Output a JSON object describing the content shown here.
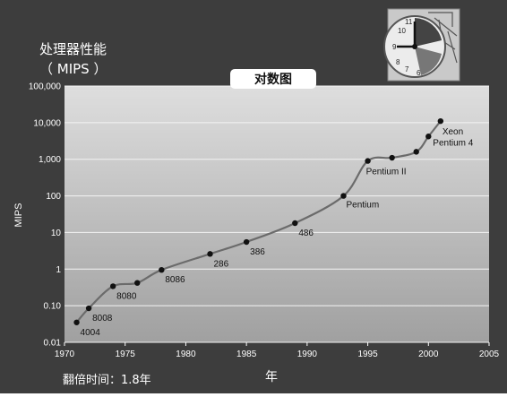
{
  "header": {
    "title_line1": "处理器性能",
    "title_line2": "（ MIPS ）"
  },
  "scale_badge": "对数图",
  "footer": {
    "doubling_time": "翻倍时间：1.8年"
  },
  "colors": {
    "background": "#3d3d3d",
    "plot_top": "#d6d6d6",
    "plot_bottom": "#9c9c9c",
    "line": "#6e6e6e",
    "point": "#111111"
  },
  "icon": "analog-clock-over-circuit-icon",
  "chart_data": {
    "type": "line",
    "ylabel": "MIPS",
    "xlabel": "年",
    "xlim": [
      1970,
      2005
    ],
    "ylim": [
      0.01,
      100000
    ],
    "y_scale": "log",
    "grid": true,
    "x_ticks": [
      1970,
      1975,
      1980,
      1985,
      1990,
      1995,
      2000,
      2005
    ],
    "y_ticks": [
      {
        "value": 0.01,
        "label": "0.01"
      },
      {
        "value": 0.1,
        "label": "0.10"
      },
      {
        "value": 1,
        "label": "1"
      },
      {
        "value": 10,
        "label": "10"
      },
      {
        "value": 100,
        "label": "100"
      },
      {
        "value": 1000,
        "label": "1,000"
      },
      {
        "value": 10000,
        "label": "10,000"
      },
      {
        "value": 100000,
        "label": "100,000"
      }
    ],
    "points": [
      {
        "x": 1971,
        "y": 0.035,
        "label": "4004"
      },
      {
        "x": 1972,
        "y": 0.085,
        "label": "8008"
      },
      {
        "x": 1974,
        "y": 0.34,
        "label": "8080"
      },
      {
        "x": 1976,
        "y": 0.42,
        "label": ""
      },
      {
        "x": 1978,
        "y": 0.95,
        "label": "8086"
      },
      {
        "x": 1982,
        "y": 2.6,
        "label": "286"
      },
      {
        "x": 1985,
        "y": 5.5,
        "label": "386"
      },
      {
        "x": 1989,
        "y": 18,
        "label": "486"
      },
      {
        "x": 1993,
        "y": 100,
        "label": "Pentium"
      },
      {
        "x": 1995,
        "y": 900,
        "label": "Pentium II"
      },
      {
        "x": 1997,
        "y": 1100,
        "label": ""
      },
      {
        "x": 1999,
        "y": 1600,
        "label": ""
      },
      {
        "x": 2000,
        "y": 4200,
        "label": "Pentium 4"
      },
      {
        "x": 2001,
        "y": 11000,
        "label": "Xeon"
      }
    ]
  }
}
